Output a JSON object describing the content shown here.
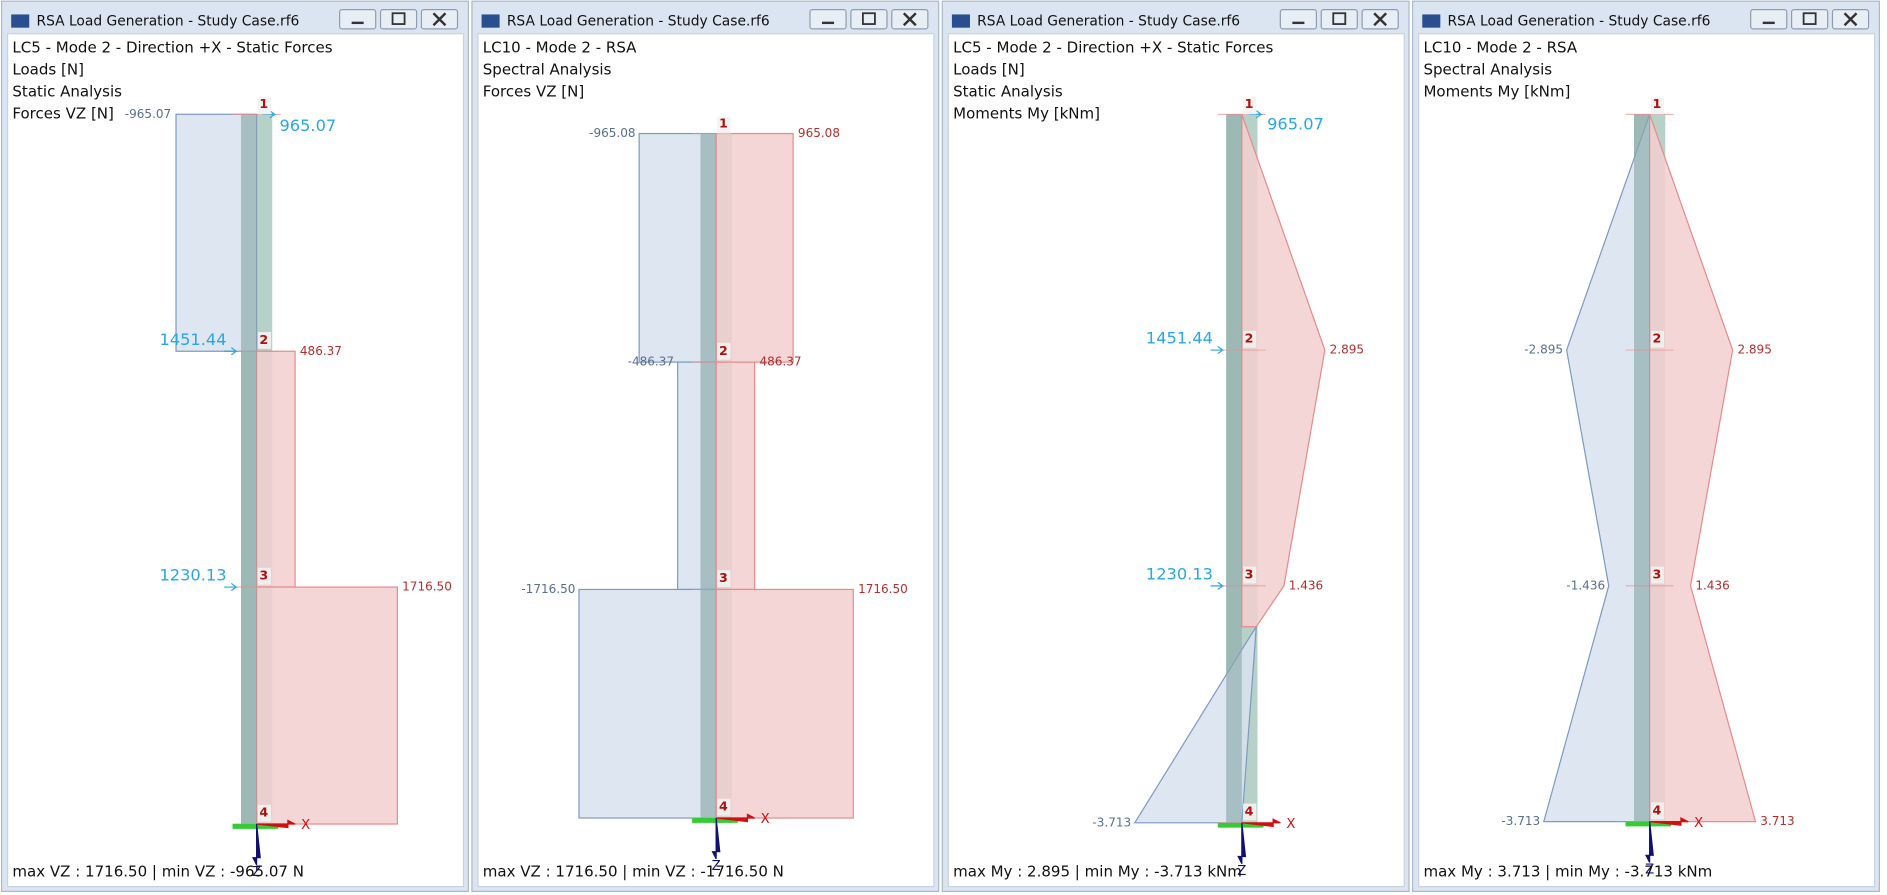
{
  "windows": [
    {
      "title": "RSA Load Generation - Study Case.rf6",
      "lines": [
        "LC5 - Mode 2 - Direction +X - Static Forces",
        "Loads [N]",
        "Static Analysis",
        "Forces VZ [N]"
      ],
      "labels": [
        "-965.07",
        "965.07",
        "1451.44",
        "486.37",
        "1230.13",
        "1716.50"
      ],
      "nodes": [
        "1",
        "2",
        "3",
        "4"
      ],
      "axes": [
        "X",
        "Z"
      ],
      "footer": "max VZ : 1716.50 | min VZ : -965.07 N"
    },
    {
      "title": "RSA Load Generation - Study Case.rf6",
      "lines": [
        "LC10 - Mode 2 - RSA",
        "Spectral Analysis",
        "Forces VZ [N]"
      ],
      "labels": [
        "-965.08",
        "965.08",
        "-486.37",
        "486.37",
        "-1716.50",
        "1716.50"
      ],
      "nodes": [
        "1",
        "2",
        "3",
        "4"
      ],
      "axes": [
        "X",
        "Z"
      ],
      "footer": "max VZ : 1716.50 | min VZ : -1716.50 N"
    },
    {
      "title": "RSA Load Generation - Study Case.rf6",
      "lines": [
        "LC5 - Mode 2 - Direction +X - Static Forces",
        "Loads [N]",
        "Static Analysis",
        "Moments My [kNm]"
      ],
      "labels": [
        "965.07",
        "1451.44",
        "2.895",
        "1230.13",
        "1.436",
        "-3.713"
      ],
      "nodes": [
        "1",
        "2",
        "3",
        "4"
      ],
      "axes": [
        "X",
        "Z"
      ],
      "footer": "max My : 2.895 | min My : -3.713 kNm"
    },
    {
      "title": "RSA Load Generation - Study Case.rf6",
      "lines": [
        "LC10 - Mode 2 - RSA",
        "Spectral Analysis",
        "Moments My [kNm]"
      ],
      "labels": [
        "-2.895",
        "2.895",
        "-1.436",
        "1.436",
        "-3.713",
        "3.713"
      ],
      "nodes": [
        "1",
        "2",
        "3",
        "4"
      ],
      "axes": [
        "X",
        "Z"
      ],
      "footer": "max My : 3.713 | min My : -3.713 kNm"
    }
  ]
}
